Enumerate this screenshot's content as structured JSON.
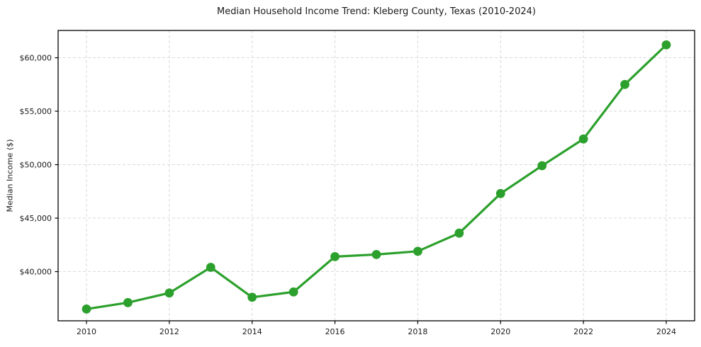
{
  "chart_data": {
    "type": "line",
    "title": "Median Household Income Trend: Kleberg County, Texas (2010-2024)",
    "xlabel": "",
    "ylabel": "Median Income ($)",
    "x": [
      2010,
      2011,
      2012,
      2013,
      2014,
      2015,
      2016,
      2017,
      2018,
      2019,
      2020,
      2021,
      2022,
      2023,
      2024
    ],
    "y": [
      36500,
      37100,
      38000,
      40400,
      37600,
      38100,
      41400,
      41600,
      41900,
      43600,
      47300,
      49900,
      52400,
      57500,
      61200
    ],
    "x_ticks": [
      2010,
      2012,
      2014,
      2016,
      2018,
      2020,
      2022,
      2024
    ],
    "y_ticks": [
      40000,
      45000,
      50000,
      55000,
      60000
    ],
    "y_tick_labels": [
      "$40,000",
      "$45,000",
      "$50,000",
      "$55,000",
      "$60,000"
    ],
    "xlim": [
      2009.315,
      2024.685
    ],
    "ylim": [
      35400,
      62550
    ],
    "grid": true,
    "grid_style": "dashed",
    "legend": false,
    "line_color": "#2ca02c",
    "marker": "circle",
    "marker_radius": 6.4,
    "line_width": 3.2,
    "grid_color": "#d9d9d9",
    "spine_color": "#000000",
    "background": "#ffffff"
  }
}
